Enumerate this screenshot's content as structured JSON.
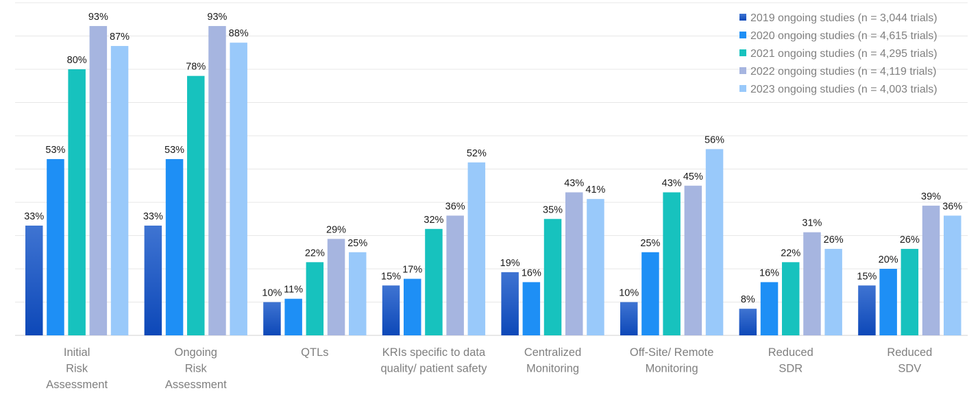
{
  "chart_data": {
    "type": "bar",
    "title": "",
    "xlabel": "",
    "ylabel": "",
    "ylim": [
      0,
      100
    ],
    "grid": true,
    "legend_position": "top-right",
    "categories": [
      [
        "Initial",
        "Risk",
        "Assessment"
      ],
      [
        "Ongoing",
        "Risk",
        "Assessment"
      ],
      [
        "QTLs"
      ],
      [
        "KRIs specific to data",
        "quality/ patient safety"
      ],
      [
        "Centralized",
        "Monitoring"
      ],
      [
        "Off-Site/ Remote",
        "Monitoring"
      ],
      [
        "Reduced",
        "SDR"
      ],
      [
        "Reduced",
        "SDV"
      ]
    ],
    "series": [
      {
        "name": "2019 ongoing studies (n = 3,044 trials)",
        "color": "#1f5bc4",
        "gradient": true,
        "values": [
          33,
          33,
          10,
          15,
          19,
          10,
          8,
          15
        ]
      },
      {
        "name": "2020 ongoing studies (n = 4,615 trials)",
        "color": "#1e8ff5",
        "values": [
          53,
          53,
          11,
          17,
          16,
          25,
          16,
          20
        ]
      },
      {
        "name": "2021 ongoing studies (n = 4,295 trials)",
        "color": "#17c2be",
        "values": [
          80,
          78,
          22,
          32,
          35,
          43,
          22,
          26
        ]
      },
      {
        "name": "2022 ongoing studies (n = 4,119 trials)",
        "color": "#a6b5e0",
        "values": [
          93,
          93,
          29,
          36,
          43,
          45,
          31,
          39
        ]
      },
      {
        "name": "2023 ongoing studies (n = 4,003 trials)",
        "color": "#99c9fa",
        "values": [
          87,
          88,
          25,
          52,
          41,
          56,
          26,
          36
        ]
      }
    ],
    "value_suffix": "%"
  }
}
